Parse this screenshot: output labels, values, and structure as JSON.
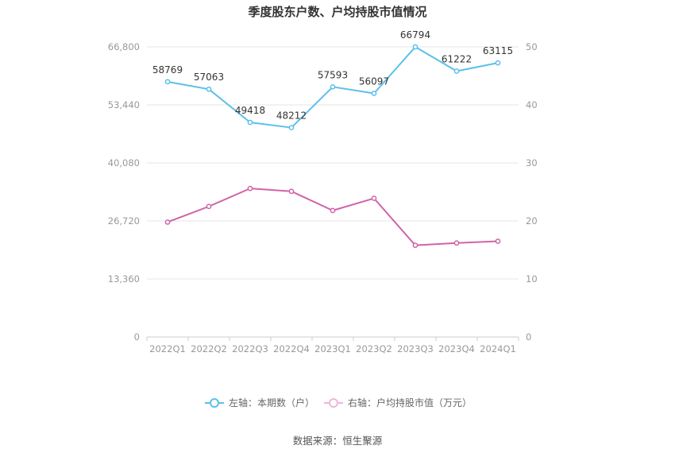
{
  "chart_data": {
    "type": "line",
    "title": "季度股东户数、户均持股市值情况",
    "categories": [
      "2022Q1",
      "2022Q2",
      "2022Q3",
      "2022Q4",
      "2023Q1",
      "2023Q2",
      "2023Q3",
      "2023Q4",
      "2024Q1"
    ],
    "left_axis": {
      "min": 0,
      "max": 66800,
      "ticks": [
        "0",
        "13,360",
        "26,720",
        "40,080",
        "53,440",
        "66,800"
      ]
    },
    "right_axis": {
      "min": 0,
      "max": 50,
      "ticks": [
        "0",
        "10",
        "20",
        "30",
        "40",
        "50"
      ]
    },
    "series": [
      {
        "name": "左轴：本期数（户）",
        "axis": "left",
        "color": "#5bc0eb",
        "values": [
          58769,
          57063,
          49418,
          48212,
          57593,
          56097,
          66794,
          61222,
          63115
        ],
        "labels": [
          "58769",
          "57063",
          "49418",
          "48212",
          "57593",
          "56097",
          "66794",
          "61222",
          "63115"
        ]
      },
      {
        "name": "右轴：户均持股市值（万元）",
        "axis": "right",
        "color": "#d064a8",
        "values": [
          19.8,
          22.5,
          25.6,
          25.1,
          21.8,
          23.9,
          15.8,
          16.2,
          16.5
        ]
      }
    ],
    "grid": true,
    "legend_position": "bottom"
  },
  "legend": {
    "left_label": "左轴：本期数（户）",
    "right_label": "右轴：户均持股市值（万元）"
  },
  "source": "数据来源：恒生聚源"
}
